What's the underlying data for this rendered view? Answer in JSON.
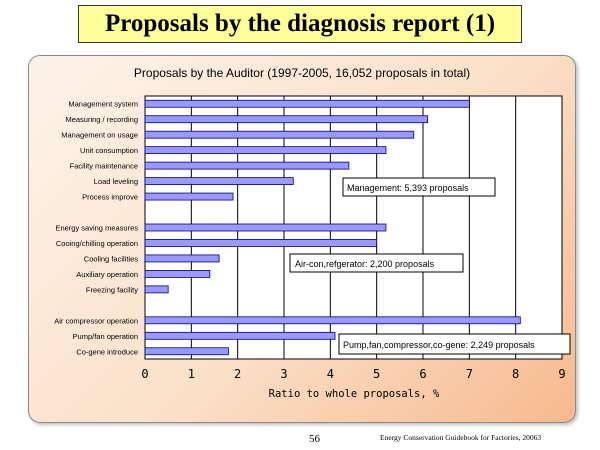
{
  "slide": {
    "title": "Proposals by the diagnosis report  (1)",
    "page_number": "56",
    "footer": "Energy Conservation Guidebook for Factories, 20063"
  },
  "colors": {
    "bar_fill": "#9999ff",
    "bar_stroke": "#000080",
    "title_bg": "#ffff99"
  },
  "chart_data": {
    "type": "bar",
    "orientation": "horizontal",
    "title": "Proposals by the Auditor (1997-2005, 16,052 proposals in total)",
    "xlabel": "Ratio to whole proposals, %",
    "ylabel": "",
    "xlim": [
      0,
      9
    ],
    "xticks": [
      "0",
      "1",
      "2",
      "3",
      "4",
      "5",
      "6",
      "7",
      "8",
      "9"
    ],
    "grid": "vertical",
    "legend": "none",
    "categories": [
      "Management system",
      "Measuring / recording",
      "Management on usage",
      "Unit consumption",
      "Facility maintenance",
      "Load leveling",
      "Process improve",
      "",
      "Energy saving measures",
      "Cooing/chilling operation",
      "Cooling facilities",
      "Auxiliary operation",
      "Freezing facility",
      "",
      "Air compressor operation",
      "Pump/fan operation",
      "Co-gene introduce"
    ],
    "values": [
      7.0,
      6.1,
      5.8,
      5.2,
      4.4,
      3.2,
      1.9,
      null,
      5.2,
      5.0,
      1.6,
      1.4,
      0.5,
      null,
      8.1,
      4.1,
      1.8
    ],
    "annotations": [
      "Management: 5,393 proposals",
      "Air-con,refgerator: 2,200 proposals",
      "Pump,fan,compressor,co-gene: 2,249 proposals"
    ]
  }
}
